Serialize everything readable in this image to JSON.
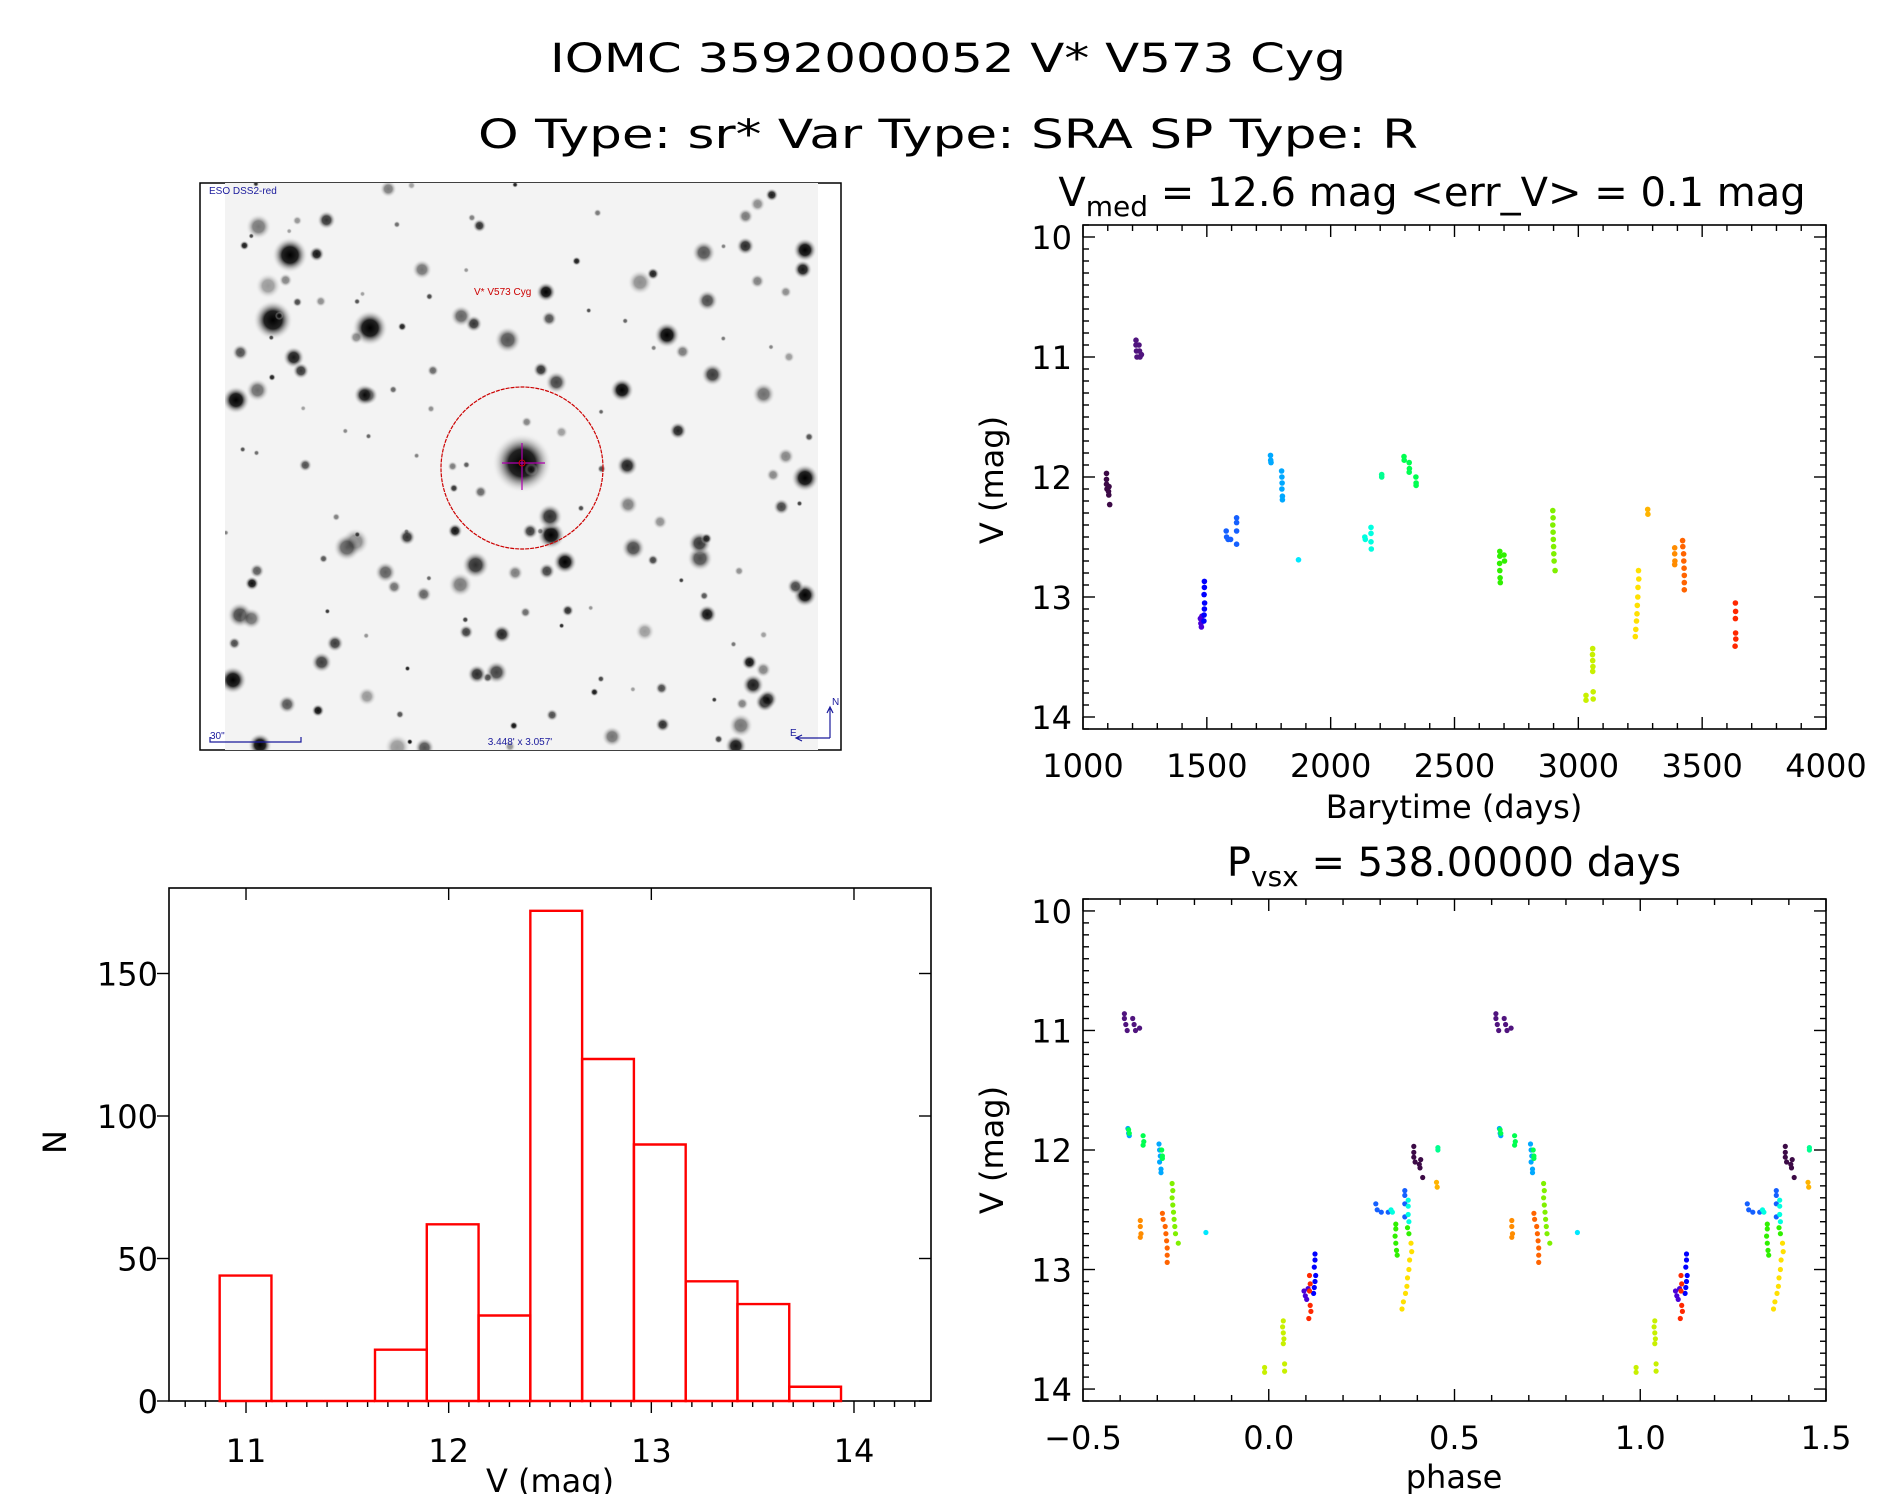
{
  "header": {
    "line1": "IOMC 3592000052   V* V573 Cyg",
    "line2": "O Type: sr*   Var Type: SRA   SP Type: R"
  },
  "image_panel": {
    "survey_label": "ESO DSS2-red",
    "target_label": "V* V573 Cyg",
    "scale_label": "30\"",
    "fov_label": "3.448' x 3.057'",
    "compass_north": "N",
    "compass_east": "E",
    "colors": {
      "annotation": "#1a1a9c",
      "target": "#cc0000",
      "crosshair": "#b000b0"
    }
  },
  "chart_data": [
    {
      "id": "lightcurve",
      "type": "scatter",
      "title": {
        "main": "V",
        "sub": "med",
        "rest": " = 12.6 mag <err_V> = 0.1 mag"
      },
      "xlabel": "Barytime (days)",
      "ylabel": "V (mag)",
      "xlim": [
        1000,
        4000
      ],
      "ylim": [
        9.9,
        14.1
      ],
      "y_inverted": true,
      "xticks": [
        "1000",
        "1500",
        "2000",
        "2500",
        "3000",
        "3500",
        "4000"
      ],
      "yticks": [
        "10",
        "11",
        "12",
        "13",
        "14"
      ],
      "series": [
        {
          "color": "#3c0a46",
          "points": [
            [
              1095,
              11.97
            ],
            [
              1095,
              12.02
            ],
            [
              1095,
              12.06
            ],
            [
              1097,
              12.1
            ],
            [
              1103,
              12.12
            ],
            [
              1104,
              12.15
            ],
            [
              1105,
              12.08
            ],
            [
              1108,
              12.23
            ]
          ]
        },
        {
          "color": "#50147e",
          "points": [
            [
              1214,
              10.86
            ],
            [
              1214,
              10.9
            ],
            [
              1216,
              10.95
            ],
            [
              1218,
              11.0
            ],
            [
              1226,
              10.9
            ],
            [
              1228,
              10.95
            ],
            [
              1230,
              11.0
            ],
            [
              1236,
              10.98
            ]
          ]
        },
        {
          "color": "#4a00d8",
          "points": [
            [
              1474,
              13.18
            ],
            [
              1476,
              13.22
            ],
            [
              1478,
              13.25
            ],
            [
              1480,
              13.16
            ]
          ]
        },
        {
          "color": "#0000ff",
          "points": [
            [
              1490,
              12.87
            ],
            [
              1490,
              12.92
            ],
            [
              1489,
              12.98
            ],
            [
              1491,
              13.05
            ],
            [
              1490,
              13.1
            ],
            [
              1489,
              13.15
            ],
            [
              1488,
              13.2
            ]
          ]
        },
        {
          "color": "#1560ff",
          "points": [
            [
              1578,
              12.45
            ],
            [
              1580,
              12.5
            ],
            [
              1586,
              12.52
            ],
            [
              1596,
              12.52
            ],
            [
              1620,
              12.34
            ],
            [
              1620,
              12.38
            ],
            [
              1620,
              12.45
            ],
            [
              1620,
              12.56
            ]
          ]
        },
        {
          "color": "#00a8ff",
          "points": [
            [
              1757,
              11.82
            ],
            [
              1758,
              11.86
            ],
            [
              1759,
              11.88
            ],
            [
              1802,
              11.95
            ],
            [
              1803,
              12.0
            ],
            [
              1804,
              12.05
            ],
            [
              1803,
              12.1
            ],
            [
              1805,
              12.16
            ],
            [
              1805,
              12.19
            ]
          ]
        },
        {
          "color": "#00e8ff",
          "points": [
            [
              1870,
              12.69
            ]
          ]
        },
        {
          "color": "#00ffe0",
          "points": [
            [
              2138,
              12.5
            ],
            [
              2140,
              12.52
            ],
            [
              2163,
              12.42
            ],
            [
              2163,
              12.47
            ],
            [
              2163,
              12.54
            ],
            [
              2164,
              12.6
            ]
          ]
        },
        {
          "color": "#00ff90",
          "points": [
            [
              2206,
              11.98
            ],
            [
              2206,
              12.0
            ]
          ]
        },
        {
          "color": "#00ff50",
          "points": [
            [
              2296,
              11.83
            ],
            [
              2297,
              11.86
            ],
            [
              2317,
              11.88
            ],
            [
              2318,
              11.93
            ],
            [
              2317,
              11.96
            ],
            [
              2344,
              12.0
            ],
            [
              2345,
              12.05
            ],
            [
              2345,
              12.07
            ]
          ]
        },
        {
          "color": "#30f000",
          "points": [
            [
              2683,
              12.62
            ],
            [
              2683,
              12.66
            ],
            [
              2682,
              12.72
            ],
            [
              2683,
              12.78
            ],
            [
              2684,
              12.84
            ],
            [
              2685,
              12.88
            ],
            [
              2700,
              12.65
            ],
            [
              2702,
              12.7
            ]
          ]
        },
        {
          "color": "#80f000",
          "points": [
            [
              2897,
              12.28
            ],
            [
              2898,
              12.34
            ],
            [
              2897,
              12.4
            ],
            [
              2898,
              12.46
            ],
            [
              2899,
              12.52
            ],
            [
              2900,
              12.58
            ],
            [
              2901,
              12.64
            ],
            [
              2902,
              12.7
            ],
            [
              2906,
              12.78
            ]
          ]
        },
        {
          "color": "#c8f000",
          "points": [
            [
              3058,
              13.43
            ],
            [
              3057,
              13.48
            ],
            [
              3058,
              13.53
            ],
            [
              3059,
              13.58
            ],
            [
              3058,
              13.62
            ],
            [
              3031,
              13.82
            ],
            [
              3031,
              13.86
            ],
            [
              3060,
              13.79
            ],
            [
              3060,
              13.85
            ]
          ]
        },
        {
          "color": "#ffe000",
          "points": [
            [
              3243,
              12.78
            ],
            [
              3244,
              12.85
            ],
            [
              3241,
              12.92
            ],
            [
              3240,
              13.0
            ],
            [
              3238,
              13.07
            ],
            [
              3237,
              13.14
            ],
            [
              3235,
              13.2
            ],
            [
              3232,
              13.27
            ],
            [
              3230,
              13.33
            ]
          ]
        },
        {
          "color": "#ffb400",
          "points": [
            [
              3280,
              12.27
            ],
            [
              3281,
              12.31
            ]
          ]
        },
        {
          "color": "#ff8c00",
          "points": [
            [
              3389,
              12.59
            ],
            [
              3389,
              12.64
            ],
            [
              3390,
              12.7
            ],
            [
              3389,
              12.73
            ]
          ]
        },
        {
          "color": "#ff6400",
          "points": [
            [
              3421,
              12.53
            ],
            [
              3422,
              12.58
            ],
            [
              3425,
              12.64
            ],
            [
              3426,
              12.7
            ],
            [
              3427,
              12.76
            ],
            [
              3428,
              12.82
            ],
            [
              3428,
              12.88
            ],
            [
              3428,
              12.94
            ]
          ]
        },
        {
          "color": "#ff2800",
          "points": [
            [
              3634,
              13.05
            ],
            [
              3635,
              13.12
            ],
            [
              3634,
              13.18
            ],
            [
              3635,
              13.3
            ],
            [
              3636,
              13.35
            ],
            [
              3633,
              13.41
            ]
          ]
        }
      ]
    },
    {
      "id": "phased",
      "type": "scatter",
      "title": {
        "main": "P",
        "sub": "vsx",
        "rest": " = 538.00000 days"
      },
      "period_days": 538.0,
      "epoch_days": 885,
      "xlabel": "phase",
      "ylabel": "V (mag)",
      "xlim": [
        -0.5,
        1.5
      ],
      "ylim": [
        9.9,
        14.1
      ],
      "y_inverted": true,
      "xticks": [
        "−0.5",
        "0.0",
        "0.5",
        "1.0",
        "1.5"
      ],
      "yticks": [
        "10",
        "11",
        "12",
        "13",
        "14"
      ]
    },
    {
      "id": "histogram",
      "type": "bar",
      "xlabel": "V (mag)",
      "ylabel": "N",
      "bin_start": 10.87,
      "bin_width": 0.2555,
      "counts": [
        44,
        0,
        0,
        18,
        62,
        30,
        172,
        120,
        90,
        42,
        34,
        5
      ],
      "xlim": [
        10.62,
        14.38
      ],
      "ylim": [
        0,
        180
      ],
      "xticks": [
        "11",
        "12",
        "13",
        "14"
      ],
      "yticks": [
        "0",
        "50",
        "100",
        "150"
      ],
      "bar_color": "#ff0000"
    }
  ]
}
